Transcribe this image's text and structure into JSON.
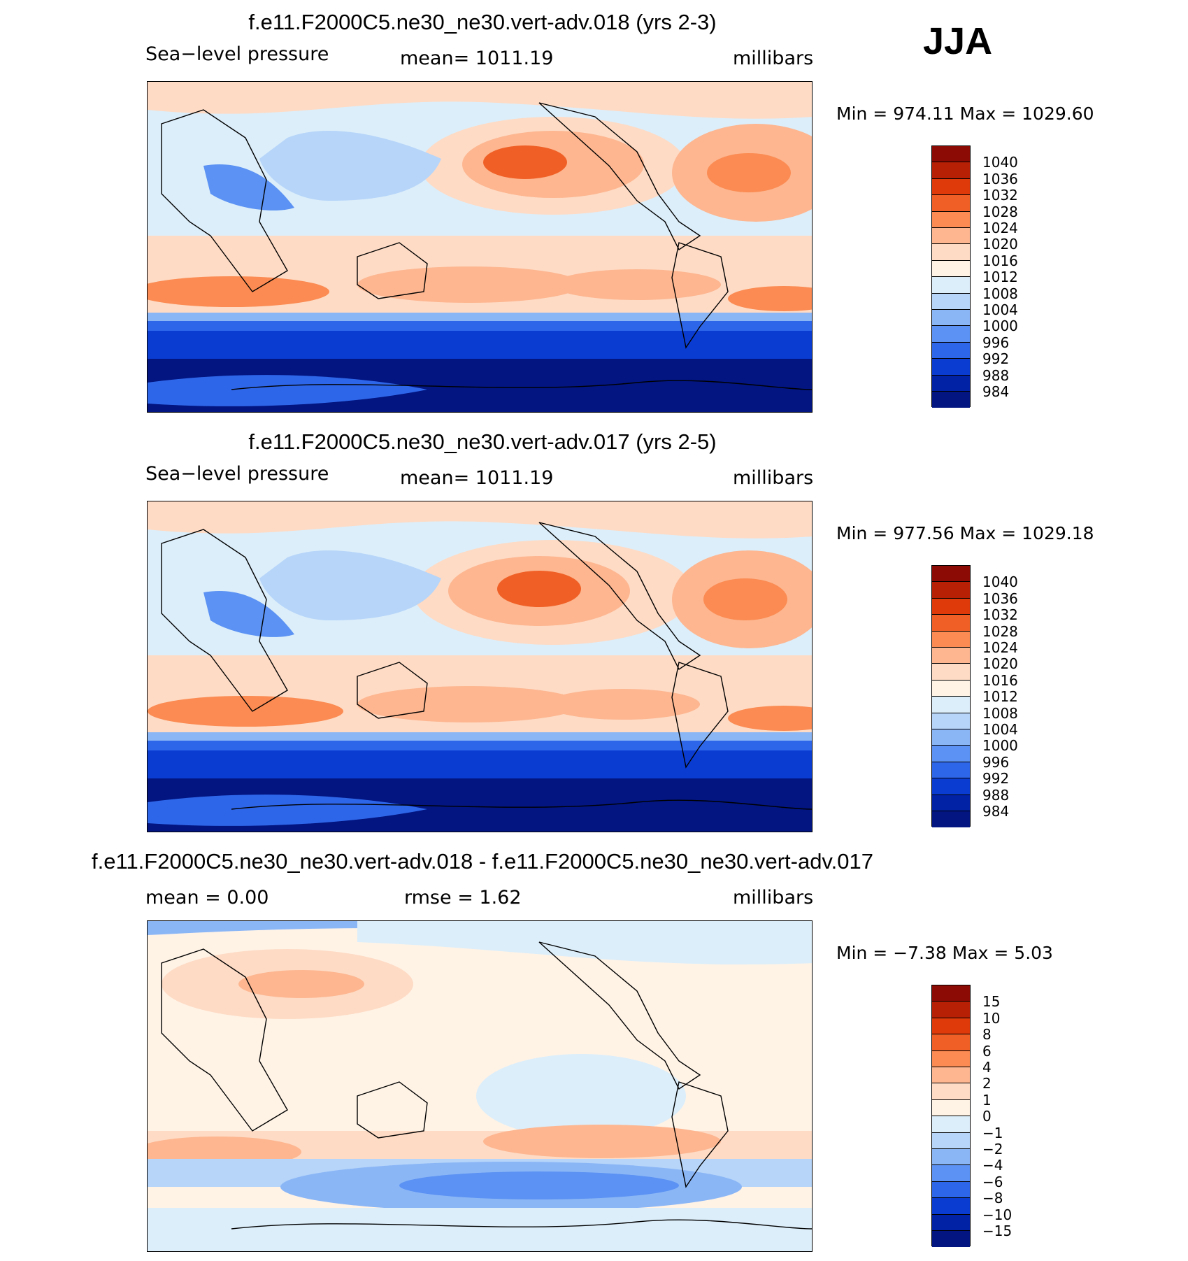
{
  "season": "JJA",
  "panels": [
    {
      "title": "f.e11.F2000C5.ne30_ne30.vert-adv.018 (yrs 2-3)",
      "variable": "Sea−level pressure",
      "stat_text": "mean=  1011.19",
      "units": "millibars",
      "minmax_text": "Min  =  974.11  Max  =  1029.60",
      "colorbar": {
        "labels": [
          "1040",
          "1036",
          "1032",
          "1028",
          "1024",
          "1020",
          "1016",
          "1012",
          "1008",
          "1004",
          "1000",
          "996",
          "992",
          "988",
          "984"
        ],
        "colors": [
          "#8c0b04",
          "#b82006",
          "#de3a0a",
          "#f06026",
          "#fb8b52",
          "#fdb690",
          "#fedbc5",
          "#fff3e6",
          "#dceefa",
          "#b6d5f9",
          "#8bb6f6",
          "#5b92f3",
          "#2e66ea",
          "#0a3cd2",
          "#0222a6",
          "#021580"
        ]
      }
    },
    {
      "title": "f.e11.F2000C5.ne30_ne30.vert-adv.017 (yrs 2-5)",
      "variable": "Sea−level pressure",
      "stat_text": "mean=  1011.19",
      "units": "millibars",
      "minmax_text": "Min  =  977.56  Max  =  1029.18",
      "colorbar": {
        "labels": [
          "1040",
          "1036",
          "1032",
          "1028",
          "1024",
          "1020",
          "1016",
          "1012",
          "1008",
          "1004",
          "1000",
          "996",
          "992",
          "988",
          "984"
        ],
        "colors": [
          "#8c0b04",
          "#b82006",
          "#de3a0a",
          "#f06026",
          "#fb8b52",
          "#fdb690",
          "#fedbc5",
          "#fff3e6",
          "#dceefa",
          "#b6d5f9",
          "#8bb6f6",
          "#5b92f3",
          "#2e66ea",
          "#0a3cd2",
          "#0222a6",
          "#021580"
        ]
      }
    },
    {
      "title": "f.e11.F2000C5.ne30_ne30.vert-adv.018 - f.e11.F2000C5.ne30_ne30.vert-adv.017",
      "variable": "mean  =      0.00",
      "stat_text": "rmse  =      1.62",
      "units": "millibars",
      "minmax_text": "Min  =    −7.38  Max  =      5.03",
      "colorbar": {
        "labels": [
          "15",
          "10",
          "8",
          "6",
          "4",
          "2",
          "1",
          "0",
          "−1",
          "−2",
          "−4",
          "−6",
          "−8",
          "−10",
          "−15"
        ],
        "colors": [
          "#8c0b04",
          "#b82006",
          "#de3a0a",
          "#f06026",
          "#fb8b52",
          "#fdb690",
          "#fedbc5",
          "#fff3e6",
          "#dceefa",
          "#b6d5f9",
          "#8bb6f6",
          "#5b92f3",
          "#2e66ea",
          "#0a3cd2",
          "#0222a6",
          "#021580"
        ]
      }
    }
  ]
}
